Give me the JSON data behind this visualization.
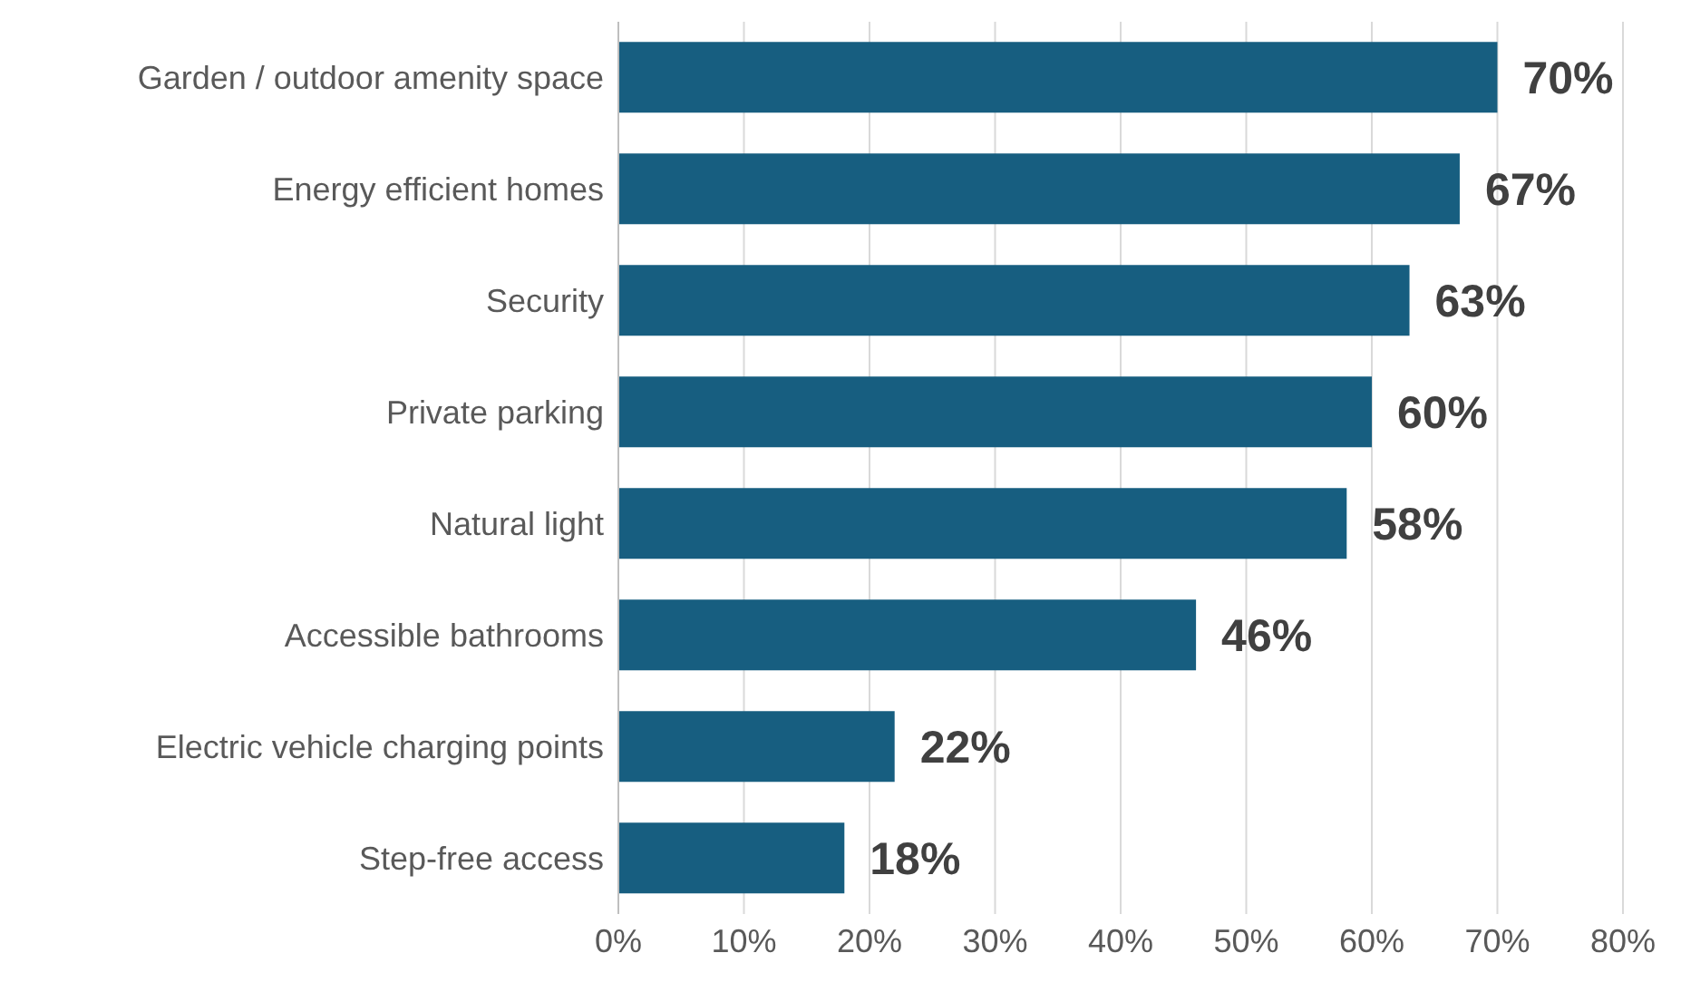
{
  "chart_data": {
    "type": "bar",
    "orientation": "horizontal",
    "categories": [
      "Garden / outdoor amenity space",
      "Energy efficient homes",
      "Security",
      "Private parking",
      "Natural light",
      "Accessible bathrooms",
      "Electric vehicle charging points",
      "Step-free access"
    ],
    "values": [
      70,
      67,
      63,
      60,
      58,
      46,
      22,
      18
    ],
    "value_labels": [
      "70%",
      "67%",
      "63%",
      "60%",
      "58%",
      "46%",
      "22%",
      "18%"
    ],
    "color": "#175e80",
    "xlim": [
      0,
      80
    ],
    "xticks": [
      {
        "value": 0,
        "label": "0%"
      },
      {
        "value": 10,
        "label": "10%"
      },
      {
        "value": 20,
        "label": "20%"
      },
      {
        "value": 30,
        "label": "30%"
      },
      {
        "value": 40,
        "label": "40%"
      },
      {
        "value": 50,
        "label": "50%"
      },
      {
        "value": 60,
        "label": "60%"
      },
      {
        "value": 70,
        "label": "70%"
      },
      {
        "value": 80,
        "label": "80%"
      }
    ],
    "grid": "x"
  }
}
